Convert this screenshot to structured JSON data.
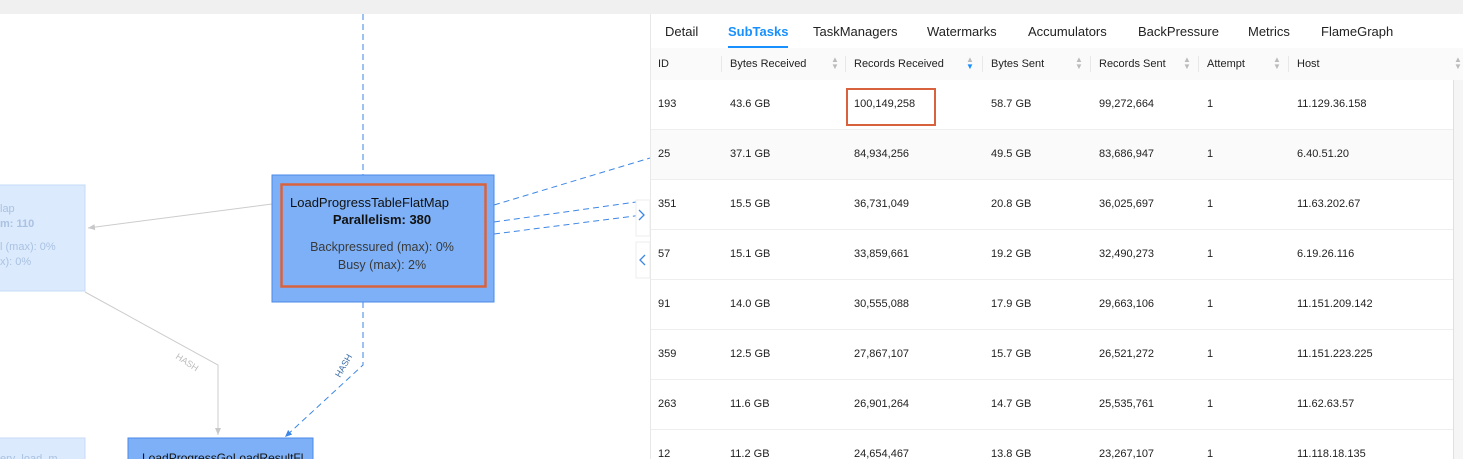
{
  "graph": {
    "nodes": [
      {
        "lines": [
          "lap",
          "m: 110",
          "l (max): 0%",
          "x): 0%"
        ]
      },
      {
        "lines": [
          "LoadProgressTableFlatMap",
          "Parallelism: 380",
          "Backpressured (max): 0%",
          "Busy (max): 2%"
        ]
      },
      {
        "lines": [
          "LoadProgressGoLoadResultFl"
        ]
      },
      {
        "lines": [
          "ery_load_m"
        ]
      }
    ],
    "edges": [
      {
        "label": "HASH"
      },
      {
        "label": "HASH"
      }
    ]
  },
  "tabs": [
    {
      "label": "Detail"
    },
    {
      "label": "SubTasks",
      "active": true
    },
    {
      "label": "TaskManagers"
    },
    {
      "label": "Watermarks"
    },
    {
      "label": "Accumulators"
    },
    {
      "label": "BackPressure"
    },
    {
      "label": "Metrics"
    },
    {
      "label": "FlameGraph"
    }
  ],
  "table": {
    "columns": [
      {
        "label": "ID"
      },
      {
        "label": "Bytes Received"
      },
      {
        "label": "Records Received",
        "sort": "descending"
      },
      {
        "label": "Bytes Sent"
      },
      {
        "label": "Records Sent"
      },
      {
        "label": "Attempt"
      },
      {
        "label": "Host"
      }
    ],
    "rows": [
      [
        "193",
        "43.6 GB",
        "100,149,258",
        "58.7 GB",
        "99,272,664",
        "1",
        "11.129.36.158"
      ],
      [
        "25",
        "37.1 GB",
        "84,934,256",
        "49.5 GB",
        "83,686,947",
        "1",
        "6.40.51.20"
      ],
      [
        "351",
        "15.5 GB",
        "36,731,049",
        "20.8 GB",
        "36,025,697",
        "1",
        "11.63.202.67"
      ],
      [
        "57",
        "15.1 GB",
        "33,859,661",
        "19.2 GB",
        "32,490,273",
        "1",
        "6.19.26.116"
      ],
      [
        "91",
        "14.0 GB",
        "30,555,088",
        "17.9 GB",
        "29,663,106",
        "1",
        "11.151.209.142"
      ],
      [
        "359",
        "12.5 GB",
        "27,867,107",
        "15.7 GB",
        "26,521,272",
        "1",
        "11.151.223.225"
      ],
      [
        "263",
        "11.6 GB",
        "26,901,264",
        "14.7 GB",
        "25,535,761",
        "1",
        "11.62.63.57"
      ],
      [
        "12",
        "11.2 GB",
        "24,654,467",
        "13.8 GB",
        "23,267,107",
        "1",
        "11.118.18.135"
      ]
    ]
  }
}
